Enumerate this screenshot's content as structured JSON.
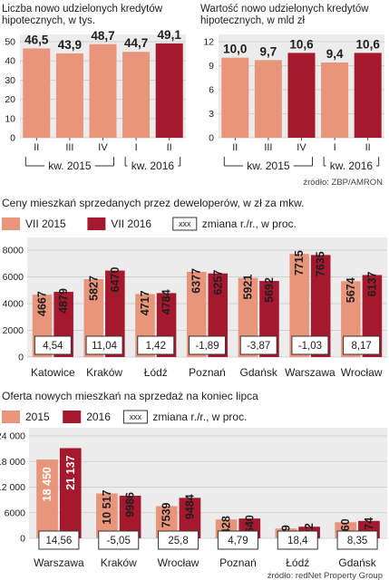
{
  "colors": {
    "panel": "#ececec",
    "light": "#e8957b",
    "dark": "#a5182d",
    "grid": "#c8c8c8",
    "text": "#1e1e1e",
    "box_border": "#333333"
  },
  "chart_data": [
    {
      "type": "bar",
      "title": "Liczba nowo udzielonych kredytów hipotecznych, w tys.",
      "categories": [
        "II",
        "III",
        "IV",
        "I",
        "II"
      ],
      "groups": [
        {
          "label": "kw. 2015",
          "span": [
            0,
            2
          ]
        },
        {
          "label": "kw. 2016",
          "span": [
            3,
            4
          ]
        }
      ],
      "values": [
        46.5,
        43.9,
        48.7,
        44.7,
        49.1
      ],
      "value_labels": [
        "46,5",
        "43,9",
        "48,7",
        "44,7",
        "49,1"
      ],
      "highlight": [
        false,
        false,
        false,
        false,
        true
      ],
      "ylim": [
        0,
        50
      ],
      "yticks": [
        0,
        10,
        20,
        30,
        40,
        50
      ],
      "ytick_labels": [
        "0",
        "10",
        "20",
        "30",
        "40",
        "50"
      ],
      "grid": true
    },
    {
      "type": "bar",
      "title": "Wartość nowo udzielonych kredytów hipotecznych, w mld zł",
      "categories": [
        "II",
        "III",
        "IV",
        "I",
        "II"
      ],
      "groups": [
        {
          "label": "kw. 2015",
          "span": [
            0,
            2
          ]
        },
        {
          "label": "kw. 2016",
          "span": [
            3,
            4
          ]
        }
      ],
      "values": [
        10.0,
        9.7,
        10.6,
        9.4,
        10.6
      ],
      "value_labels": [
        "10,0",
        "9,7",
        "10,6",
        "9,4",
        "10,6"
      ],
      "highlight": [
        false,
        false,
        true,
        false,
        true
      ],
      "ylim": [
        0,
        12
      ],
      "yticks": [
        0,
        3,
        6,
        9,
        12
      ],
      "ytick_labels": [
        "0",
        "3",
        "6",
        "9",
        "12"
      ],
      "grid": true,
      "source": "źródło: ZBP/AMRON"
    },
    {
      "type": "bar",
      "title": "Ceny mieszkań sprzedanych przez deweloperów, w zł za mkw.",
      "legend": [
        "VII 2015",
        "VII 2016",
        "zmiana r./r., w proc."
      ],
      "legend_box": "xxx",
      "categories": [
        "Katowice",
        "Kraków",
        "Łódź",
        "Poznań",
        "Gdańsk",
        "Warszawa",
        "Wrocław"
      ],
      "series": [
        {
          "name": "VII 2015",
          "values": [
            4667,
            5827,
            4717,
            6377,
            5921,
            7715,
            5674
          ]
        },
        {
          "name": "VII 2016",
          "values": [
            4879,
            6470,
            4784,
            6257,
            5692,
            7635,
            6137
          ]
        }
      ],
      "value_labels": [
        [
          "4667",
          "5827",
          "4717",
          "6377",
          "5921",
          "7715",
          "5674"
        ],
        [
          "4879",
          "6470",
          "4784",
          "6257",
          "5692",
          "7635",
          "6137"
        ]
      ],
      "change": [
        "4,54",
        "11,04",
        "1,42",
        "-1,89",
        "-3,87",
        "-1,03",
        "8,17"
      ],
      "ylim": [
        0,
        8000
      ],
      "yticks": [
        0,
        2000,
        4000,
        6000,
        8000
      ],
      "ytick_labels": [
        "0",
        "2000",
        "4000",
        "6000",
        "8000"
      ],
      "grid": true
    },
    {
      "type": "bar",
      "title": "Oferta nowych mieszkań na  sprzedaż na koniec lipca",
      "legend": [
        "2015",
        "2016",
        "zmiana r./r., w proc."
      ],
      "legend_box": "xxx",
      "categories": [
        "Warszawa",
        "Kraków",
        "Wrocław",
        "Poznań",
        "Łódź",
        "Gdańsk"
      ],
      "series": [
        {
          "name": "2015",
          "values": [
            18450,
            10517,
            7539,
            4428,
            2299,
            3760
          ]
        },
        {
          "name": "2016",
          "values": [
            21137,
            9986,
            9484,
            4640,
            2722,
            4074
          ]
        }
      ],
      "value_labels": [
        [
          "18 450",
          "10 517",
          "7539",
          "4428",
          "2299",
          "3760"
        ],
        [
          "21 137",
          "9986",
          "9484",
          "4640",
          "2722",
          "4074"
        ]
      ],
      "change": [
        "14,56",
        "-5,05",
        "25,8",
        "4,79",
        "18,4",
        "8,35"
      ],
      "ylim": [
        0,
        24000
      ],
      "yticks": [
        0,
        6000,
        12000,
        18000,
        24000
      ],
      "ytick_labels": [
        "0",
        "6000",
        "12 000",
        "18 000",
        "24 000"
      ],
      "grid": true,
      "source": "źródło: redNet Property Group"
    }
  ]
}
